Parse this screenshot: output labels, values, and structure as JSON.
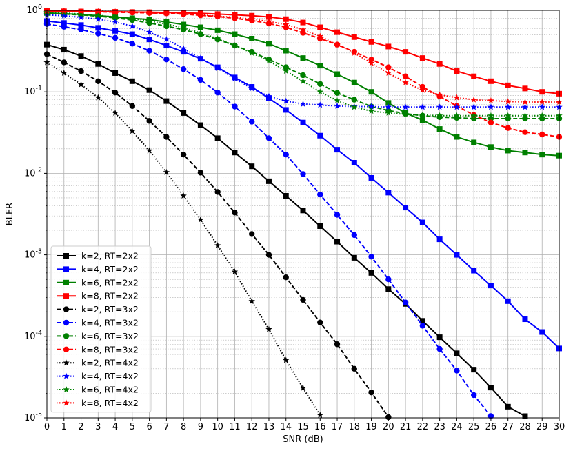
{
  "chart_data": {
    "type": "line",
    "title": "",
    "xlabel": "SNR (dB)",
    "ylabel": "BLER",
    "yscale": "log",
    "xlim": [
      0,
      30
    ],
    "ylim": [
      1e-05,
      1
    ],
    "grid": "on",
    "legend_position": "lower-left",
    "x_ticks": [
      "0",
      "1",
      "2",
      "3",
      "4",
      "5",
      "6",
      "7",
      "8",
      "9",
      "10",
      "11",
      "12",
      "13",
      "14",
      "15",
      "16",
      "17",
      "18",
      "19",
      "20",
      "21",
      "22",
      "23",
      "24",
      "25",
      "26",
      "27",
      "28",
      "29",
      "30"
    ],
    "y_ticks": [
      {
        "value": 1,
        "base": "10",
        "exp": "0"
      },
      {
        "value": 0.1,
        "base": "10",
        "exp": "-1"
      },
      {
        "value": 0.01,
        "base": "10",
        "exp": "-2"
      },
      {
        "value": 0.001,
        "base": "10",
        "exp": "-3"
      },
      {
        "value": 0.0001,
        "base": "10",
        "exp": "-4"
      },
      {
        "value": 1e-05,
        "base": "10",
        "exp": "-5"
      }
    ],
    "series": [
      {
        "name": "k=2, RT=2x2",
        "color": "#000000",
        "dash": "solid",
        "marker": "square",
        "x": [
          0,
          1,
          2,
          3,
          4,
          5,
          6,
          7,
          8,
          9,
          10,
          11,
          12,
          13,
          14,
          15,
          16,
          17,
          18,
          19,
          20,
          21,
          22,
          23,
          24,
          25,
          26,
          27,
          28
        ],
        "y": [
          0.38,
          0.33,
          0.275,
          0.22,
          0.17,
          0.135,
          0.105,
          0.077,
          0.055,
          0.039,
          0.027,
          0.018,
          0.0122,
          0.008,
          0.0053,
          0.0035,
          0.00225,
          0.00145,
          0.00092,
          0.0006,
          0.00038,
          0.00025,
          0.000155,
          9.75e-05,
          6.2e-05,
          3.9e-05,
          2.35e-05,
          1.37e-05,
          1.05e-05
        ]
      },
      {
        "name": "k=4, RT=2x2",
        "color": "#0000ff",
        "dash": "solid",
        "marker": "square",
        "x": [
          0,
          1,
          2,
          3,
          4,
          5,
          6,
          7,
          8,
          9,
          10,
          11,
          12,
          13,
          14,
          15,
          16,
          17,
          18,
          19,
          20,
          21,
          22,
          23,
          24,
          25,
          26,
          27,
          28,
          29,
          30
        ],
        "y": [
          0.74,
          0.7,
          0.66,
          0.61,
          0.56,
          0.51,
          0.44,
          0.37,
          0.31,
          0.255,
          0.2,
          0.15,
          0.115,
          0.083,
          0.06,
          0.042,
          0.029,
          0.0195,
          0.0135,
          0.0088,
          0.0058,
          0.0038,
          0.0025,
          0.00155,
          0.001,
          0.00064,
          0.00042,
          0.00027,
          0.000162,
          0.000113,
          7.1e-05
        ]
      },
      {
        "name": "k=6, RT=2x2",
        "color": "#008000",
        "dash": "solid",
        "marker": "square",
        "x": [
          0,
          1,
          2,
          3,
          4,
          5,
          6,
          7,
          8,
          9,
          10,
          11,
          12,
          13,
          14,
          15,
          16,
          17,
          18,
          19,
          20,
          21,
          22,
          23,
          24,
          25,
          26,
          27,
          28,
          29,
          30
        ],
        "y": [
          0.93,
          0.91,
          0.89,
          0.86,
          0.83,
          0.8,
          0.77,
          0.72,
          0.67,
          0.62,
          0.57,
          0.51,
          0.45,
          0.39,
          0.32,
          0.26,
          0.21,
          0.165,
          0.13,
          0.1,
          0.073,
          0.055,
          0.045,
          0.035,
          0.028,
          0.024,
          0.021,
          0.019,
          0.018,
          0.017,
          0.0165
        ]
      },
      {
        "name": "k=8, RT=2x2",
        "color": "#ff0000",
        "dash": "solid",
        "marker": "square",
        "x": [
          0,
          1,
          2,
          3,
          4,
          5,
          6,
          7,
          8,
          9,
          10,
          11,
          12,
          13,
          14,
          15,
          16,
          17,
          18,
          19,
          20,
          21,
          22,
          23,
          24,
          25,
          26,
          27,
          28,
          29,
          30
        ],
        "y": [
          0.98,
          0.975,
          0.97,
          0.965,
          0.96,
          0.955,
          0.95,
          0.94,
          0.93,
          0.92,
          0.9,
          0.88,
          0.86,
          0.83,
          0.78,
          0.71,
          0.62,
          0.54,
          0.47,
          0.41,
          0.36,
          0.31,
          0.26,
          0.22,
          0.18,
          0.155,
          0.135,
          0.12,
          0.11,
          0.1,
          0.095
        ]
      },
      {
        "name": "k=2, RT=3x2",
        "color": "#000000",
        "dash": "dashed",
        "marker": "circle",
        "x": [
          0,
          1,
          2,
          3,
          4,
          5,
          6,
          7,
          8,
          9,
          10,
          11,
          12,
          13,
          14,
          15,
          16,
          17,
          18,
          19,
          20
        ],
        "y": [
          0.29,
          0.23,
          0.18,
          0.135,
          0.098,
          0.067,
          0.044,
          0.028,
          0.017,
          0.0102,
          0.0059,
          0.0033,
          0.0018,
          0.001,
          0.00053,
          0.00028,
          0.000148,
          8e-05,
          4e-05,
          2.05e-05,
          1.02e-05
        ]
      },
      {
        "name": "k=4, RT=3x2",
        "color": "#0000ff",
        "dash": "dashed",
        "marker": "circle",
        "x": [
          0,
          1,
          2,
          3,
          4,
          5,
          6,
          7,
          8,
          9,
          10,
          11,
          12,
          13,
          14,
          15,
          16,
          17,
          18,
          19,
          20,
          21,
          22,
          23,
          24,
          25,
          26
        ],
        "y": [
          0.68,
          0.63,
          0.58,
          0.52,
          0.46,
          0.39,
          0.32,
          0.25,
          0.19,
          0.14,
          0.098,
          0.066,
          0.043,
          0.027,
          0.017,
          0.0098,
          0.0055,
          0.0031,
          0.00175,
          0.00095,
          0.0005,
          0.00026,
          0.000135,
          7e-05,
          3.8e-05,
          1.9e-05,
          1.05e-05
        ]
      },
      {
        "name": "k=6, RT=3x2",
        "color": "#008000",
        "dash": "dashed",
        "marker": "circle",
        "x": [
          0,
          1,
          2,
          3,
          4,
          5,
          6,
          7,
          8,
          9,
          10,
          11,
          12,
          13,
          14,
          15,
          16,
          17,
          18,
          19,
          20,
          21,
          22,
          23,
          24,
          25,
          26,
          27,
          28,
          29,
          30
        ],
        "y": [
          0.92,
          0.9,
          0.88,
          0.85,
          0.81,
          0.76,
          0.7,
          0.64,
          0.58,
          0.51,
          0.44,
          0.37,
          0.31,
          0.25,
          0.2,
          0.16,
          0.125,
          0.097,
          0.08,
          0.066,
          0.059,
          0.054,
          0.051,
          0.049,
          0.048,
          0.047,
          0.047,
          0.047,
          0.047,
          0.047,
          0.047
        ]
      },
      {
        "name": "k=8, RT=3x2",
        "color": "#ff0000",
        "dash": "dashed",
        "marker": "circle",
        "x": [
          0,
          1,
          2,
          3,
          4,
          5,
          6,
          7,
          8,
          9,
          10,
          11,
          12,
          13,
          14,
          15,
          16,
          17,
          18,
          19,
          20,
          21,
          22,
          23,
          24,
          25,
          26,
          27,
          28,
          29,
          30
        ],
        "y": [
          0.98,
          0.975,
          0.97,
          0.96,
          0.95,
          0.94,
          0.93,
          0.92,
          0.9,
          0.87,
          0.84,
          0.8,
          0.75,
          0.69,
          0.62,
          0.53,
          0.45,
          0.38,
          0.31,
          0.25,
          0.2,
          0.155,
          0.115,
          0.088,
          0.067,
          0.052,
          0.042,
          0.036,
          0.032,
          0.03,
          0.028
        ]
      },
      {
        "name": "k=2, RT=4x2",
        "color": "#000000",
        "dash": "dotted",
        "marker": "star",
        "x": [
          0,
          1,
          2,
          3,
          4,
          5,
          6,
          7,
          8,
          9,
          10,
          11,
          12,
          13,
          14,
          15,
          16
        ],
        "y": [
          0.23,
          0.17,
          0.123,
          0.085,
          0.055,
          0.033,
          0.019,
          0.0103,
          0.0053,
          0.0027,
          0.0013,
          0.00062,
          0.00027,
          0.000122,
          5.1e-05,
          2.32e-05,
          1.08e-05
        ]
      },
      {
        "name": "k=4, RT=4x2",
        "color": "#0000ff",
        "dash": "dotted",
        "marker": "star",
        "x": [
          0,
          1,
          2,
          3,
          4,
          5,
          6,
          7,
          8,
          9,
          10,
          11,
          12,
          13,
          14,
          15,
          16,
          17,
          18,
          19,
          20,
          21,
          22,
          23,
          24,
          25,
          26,
          27,
          28,
          29,
          30
        ],
        "y": [
          0.88,
          0.86,
          0.82,
          0.78,
          0.72,
          0.64,
          0.54,
          0.44,
          0.34,
          0.26,
          0.195,
          0.145,
          0.11,
          0.088,
          0.077,
          0.071,
          0.069,
          0.067,
          0.066,
          0.066,
          0.065,
          0.065,
          0.065,
          0.065,
          0.065,
          0.065,
          0.065,
          0.065,
          0.065,
          0.065,
          0.065
        ]
      },
      {
        "name": "k=6, RT=4x2",
        "color": "#008000",
        "dash": "dotted",
        "marker": "star",
        "x": [
          0,
          1,
          2,
          3,
          4,
          5,
          6,
          7,
          8,
          9,
          10,
          11,
          12,
          13,
          14,
          15,
          16,
          17,
          18,
          19,
          20,
          21,
          22,
          23,
          24,
          25,
          26,
          27,
          28,
          29,
          30
        ],
        "y": [
          0.95,
          0.93,
          0.9,
          0.87,
          0.83,
          0.79,
          0.74,
          0.68,
          0.61,
          0.53,
          0.45,
          0.37,
          0.3,
          0.24,
          0.18,
          0.135,
          0.1,
          0.078,
          0.065,
          0.058,
          0.055,
          0.053,
          0.052,
          0.051,
          0.051,
          0.051,
          0.051,
          0.051,
          0.051,
          0.051,
          0.051
        ]
      },
      {
        "name": "k=8, RT=4x2",
        "color": "#ff0000",
        "dash": "dotted",
        "marker": "star",
        "x": [
          0,
          1,
          2,
          3,
          4,
          5,
          6,
          7,
          8,
          9,
          10,
          11,
          12,
          13,
          14,
          15,
          16,
          17,
          18,
          19,
          20,
          21,
          22,
          23,
          24,
          25,
          26,
          27,
          28,
          29,
          30
        ],
        "y": [
          0.985,
          0.98,
          0.975,
          0.97,
          0.965,
          0.955,
          0.94,
          0.92,
          0.9,
          0.88,
          0.85,
          0.82,
          0.78,
          0.73,
          0.67,
          0.58,
          0.48,
          0.38,
          0.3,
          0.225,
          0.17,
          0.13,
          0.105,
          0.092,
          0.085,
          0.08,
          0.078,
          0.076,
          0.075,
          0.075,
          0.075
        ]
      }
    ]
  }
}
